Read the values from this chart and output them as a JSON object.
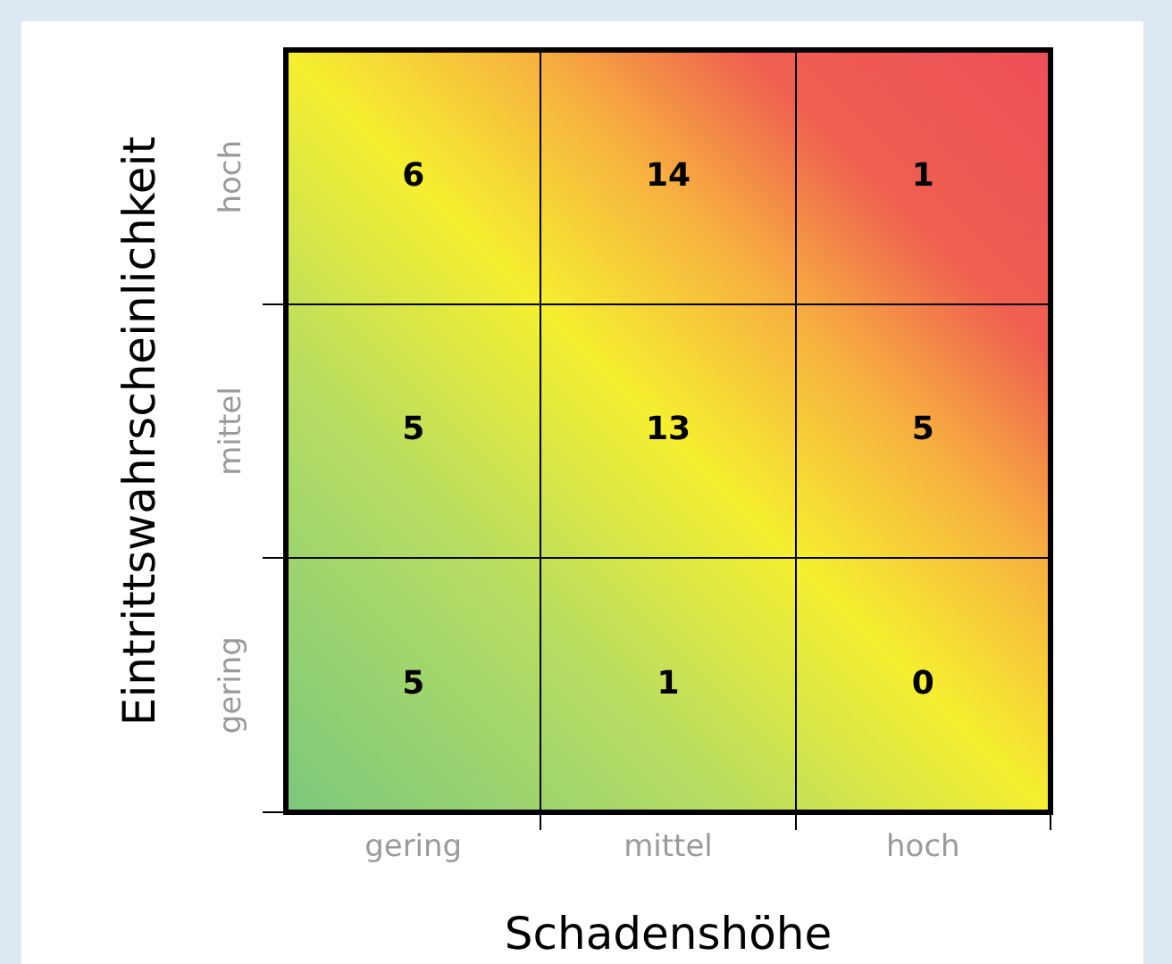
{
  "chart_data": {
    "type": "heatmap",
    "xlabel": "Schadenshöhe",
    "ylabel": "Eintrittswahrscheinlichkeit",
    "categories": [
      "gering",
      "mittel",
      "hoch"
    ],
    "y_categories": [
      "hoch",
      "mittel",
      "gering"
    ],
    "cells": [
      [
        6,
        14,
        1
      ],
      [
        5,
        13,
        5
      ],
      [
        5,
        1,
        0
      ]
    ],
    "data_labels": true
  }
}
